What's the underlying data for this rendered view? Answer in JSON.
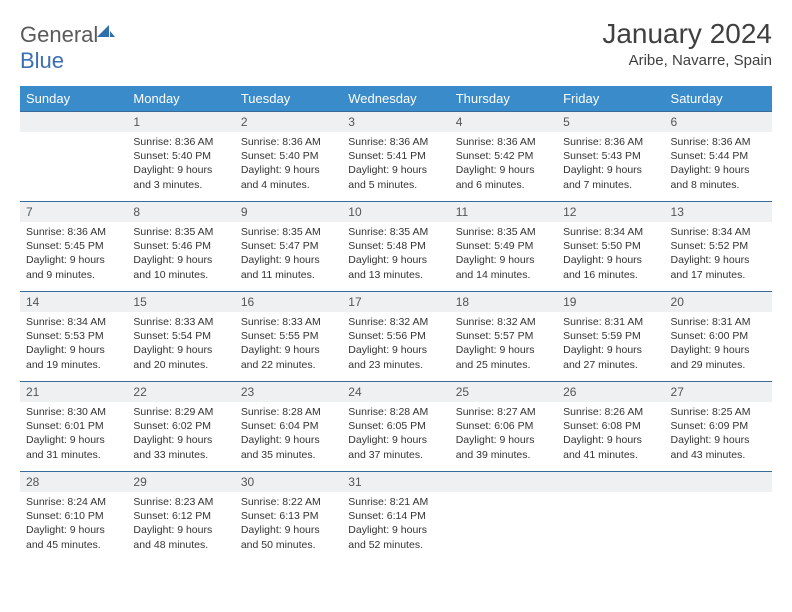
{
  "logo": {
    "text_a": "General",
    "text_b": "Blue"
  },
  "header": {
    "month_title": "January 2024",
    "location": "Aribe, Navarre, Spain"
  },
  "colors": {
    "header_bg": "#3a8bc9",
    "daynum_bg": "#eef0f2",
    "rule": "#3a6a9a"
  },
  "weekdays": [
    "Sunday",
    "Monday",
    "Tuesday",
    "Wednesday",
    "Thursday",
    "Friday",
    "Saturday"
  ],
  "weeks": [
    [
      {
        "n": "",
        "lines": []
      },
      {
        "n": "1",
        "lines": [
          "Sunrise: 8:36 AM",
          "Sunset: 5:40 PM",
          "Daylight: 9 hours",
          "and 3 minutes."
        ]
      },
      {
        "n": "2",
        "lines": [
          "Sunrise: 8:36 AM",
          "Sunset: 5:40 PM",
          "Daylight: 9 hours",
          "and 4 minutes."
        ]
      },
      {
        "n": "3",
        "lines": [
          "Sunrise: 8:36 AM",
          "Sunset: 5:41 PM",
          "Daylight: 9 hours",
          "and 5 minutes."
        ]
      },
      {
        "n": "4",
        "lines": [
          "Sunrise: 8:36 AM",
          "Sunset: 5:42 PM",
          "Daylight: 9 hours",
          "and 6 minutes."
        ]
      },
      {
        "n": "5",
        "lines": [
          "Sunrise: 8:36 AM",
          "Sunset: 5:43 PM",
          "Daylight: 9 hours",
          "and 7 minutes."
        ]
      },
      {
        "n": "6",
        "lines": [
          "Sunrise: 8:36 AM",
          "Sunset: 5:44 PM",
          "Daylight: 9 hours",
          "and 8 minutes."
        ]
      }
    ],
    [
      {
        "n": "7",
        "lines": [
          "Sunrise: 8:36 AM",
          "Sunset: 5:45 PM",
          "Daylight: 9 hours",
          "and 9 minutes."
        ]
      },
      {
        "n": "8",
        "lines": [
          "Sunrise: 8:35 AM",
          "Sunset: 5:46 PM",
          "Daylight: 9 hours",
          "and 10 minutes."
        ]
      },
      {
        "n": "9",
        "lines": [
          "Sunrise: 8:35 AM",
          "Sunset: 5:47 PM",
          "Daylight: 9 hours",
          "and 11 minutes."
        ]
      },
      {
        "n": "10",
        "lines": [
          "Sunrise: 8:35 AM",
          "Sunset: 5:48 PM",
          "Daylight: 9 hours",
          "and 13 minutes."
        ]
      },
      {
        "n": "11",
        "lines": [
          "Sunrise: 8:35 AM",
          "Sunset: 5:49 PM",
          "Daylight: 9 hours",
          "and 14 minutes."
        ]
      },
      {
        "n": "12",
        "lines": [
          "Sunrise: 8:34 AM",
          "Sunset: 5:50 PM",
          "Daylight: 9 hours",
          "and 16 minutes."
        ]
      },
      {
        "n": "13",
        "lines": [
          "Sunrise: 8:34 AM",
          "Sunset: 5:52 PM",
          "Daylight: 9 hours",
          "and 17 minutes."
        ]
      }
    ],
    [
      {
        "n": "14",
        "lines": [
          "Sunrise: 8:34 AM",
          "Sunset: 5:53 PM",
          "Daylight: 9 hours",
          "and 19 minutes."
        ]
      },
      {
        "n": "15",
        "lines": [
          "Sunrise: 8:33 AM",
          "Sunset: 5:54 PM",
          "Daylight: 9 hours",
          "and 20 minutes."
        ]
      },
      {
        "n": "16",
        "lines": [
          "Sunrise: 8:33 AM",
          "Sunset: 5:55 PM",
          "Daylight: 9 hours",
          "and 22 minutes."
        ]
      },
      {
        "n": "17",
        "lines": [
          "Sunrise: 8:32 AM",
          "Sunset: 5:56 PM",
          "Daylight: 9 hours",
          "and 23 minutes."
        ]
      },
      {
        "n": "18",
        "lines": [
          "Sunrise: 8:32 AM",
          "Sunset: 5:57 PM",
          "Daylight: 9 hours",
          "and 25 minutes."
        ]
      },
      {
        "n": "19",
        "lines": [
          "Sunrise: 8:31 AM",
          "Sunset: 5:59 PM",
          "Daylight: 9 hours",
          "and 27 minutes."
        ]
      },
      {
        "n": "20",
        "lines": [
          "Sunrise: 8:31 AM",
          "Sunset: 6:00 PM",
          "Daylight: 9 hours",
          "and 29 minutes."
        ]
      }
    ],
    [
      {
        "n": "21",
        "lines": [
          "Sunrise: 8:30 AM",
          "Sunset: 6:01 PM",
          "Daylight: 9 hours",
          "and 31 minutes."
        ]
      },
      {
        "n": "22",
        "lines": [
          "Sunrise: 8:29 AM",
          "Sunset: 6:02 PM",
          "Daylight: 9 hours",
          "and 33 minutes."
        ]
      },
      {
        "n": "23",
        "lines": [
          "Sunrise: 8:28 AM",
          "Sunset: 6:04 PM",
          "Daylight: 9 hours",
          "and 35 minutes."
        ]
      },
      {
        "n": "24",
        "lines": [
          "Sunrise: 8:28 AM",
          "Sunset: 6:05 PM",
          "Daylight: 9 hours",
          "and 37 minutes."
        ]
      },
      {
        "n": "25",
        "lines": [
          "Sunrise: 8:27 AM",
          "Sunset: 6:06 PM",
          "Daylight: 9 hours",
          "and 39 minutes."
        ]
      },
      {
        "n": "26",
        "lines": [
          "Sunrise: 8:26 AM",
          "Sunset: 6:08 PM",
          "Daylight: 9 hours",
          "and 41 minutes."
        ]
      },
      {
        "n": "27",
        "lines": [
          "Sunrise: 8:25 AM",
          "Sunset: 6:09 PM",
          "Daylight: 9 hours",
          "and 43 minutes."
        ]
      }
    ],
    [
      {
        "n": "28",
        "lines": [
          "Sunrise: 8:24 AM",
          "Sunset: 6:10 PM",
          "Daylight: 9 hours",
          "and 45 minutes."
        ]
      },
      {
        "n": "29",
        "lines": [
          "Sunrise: 8:23 AM",
          "Sunset: 6:12 PM",
          "Daylight: 9 hours",
          "and 48 minutes."
        ]
      },
      {
        "n": "30",
        "lines": [
          "Sunrise: 8:22 AM",
          "Sunset: 6:13 PM",
          "Daylight: 9 hours",
          "and 50 minutes."
        ]
      },
      {
        "n": "31",
        "lines": [
          "Sunrise: 8:21 AM",
          "Sunset: 6:14 PM",
          "Daylight: 9 hours",
          "and 52 minutes."
        ]
      },
      {
        "n": "",
        "lines": []
      },
      {
        "n": "",
        "lines": []
      },
      {
        "n": "",
        "lines": []
      }
    ]
  ]
}
